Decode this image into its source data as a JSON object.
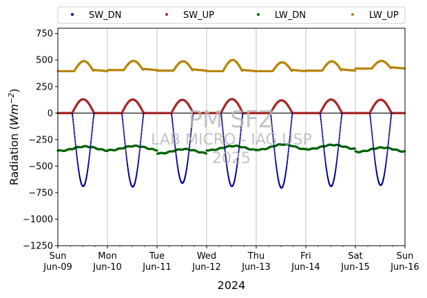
{
  "chart_data": {
    "type": "scatter",
    "title": "",
    "xlabel": "2024",
    "ylabel": "Radiation (Wm⁻²)",
    "ylabel_main": "Radiation (",
    "ylabel_unit_base": "Wm",
    "ylabel_unit_exp": "−2",
    "ylabel_close": ")",
    "xlim": [
      "2024-06-09 00:00",
      "2024-06-16 00:00"
    ],
    "ylim": [
      -1250,
      800
    ],
    "yticks": [
      -1250,
      -1000,
      -750,
      -500,
      -250,
      0,
      250,
      500,
      750
    ],
    "ytick_labels": [
      "−1250",
      "−1000",
      "−750",
      "−500",
      "−250",
      "0",
      "250",
      "500",
      "750"
    ],
    "xticks": [
      {
        "day": "Sun",
        "date": "Jun-09"
      },
      {
        "day": "Mon",
        "date": "Jun-10"
      },
      {
        "day": "Tue",
        "date": "Jun-11"
      },
      {
        "day": "Wed",
        "date": "Jun-12"
      },
      {
        "day": "Thu",
        "date": "Jun-13"
      },
      {
        "day": "Fri",
        "date": "Jun-14"
      },
      {
        "day": "Sat",
        "date": "Jun-15"
      },
      {
        "day": "Sun",
        "date": "Jun-16"
      }
    ],
    "grid": "vertical",
    "legend_position": "top",
    "zero_line": 0,
    "series": [
      {
        "name": "SW_DN",
        "color": "#00008b",
        "daily_min": [
          -690,
          -695,
          -660,
          -690,
          -705,
          -690,
          -680
        ]
      },
      {
        "name": "SW_UP",
        "color": "#a52a2a",
        "daily_max": [
          130,
          128,
          125,
          132,
          120,
          128,
          126
        ]
      },
      {
        "name": "LW_DN",
        "color": "#006400",
        "daily_mean": [
          -335,
          -330,
          -360,
          -330,
          -320,
          -320,
          -345
        ],
        "daily_amplitude": [
          20,
          20,
          20,
          20,
          25,
          20,
          20
        ]
      },
      {
        "name": "LW_UP",
        "color": "#b8860b",
        "daily_base": [
          395,
          405,
          400,
          395,
          395,
          400,
          420
        ],
        "daily_peak": [
          490,
          492,
          488,
          500,
          478,
          488,
          492
        ]
      }
    ]
  },
  "watermark": {
    "line1": "PM SFZ",
    "line2": "LAB MICRO - IAG USP",
    "line3": "2025"
  }
}
